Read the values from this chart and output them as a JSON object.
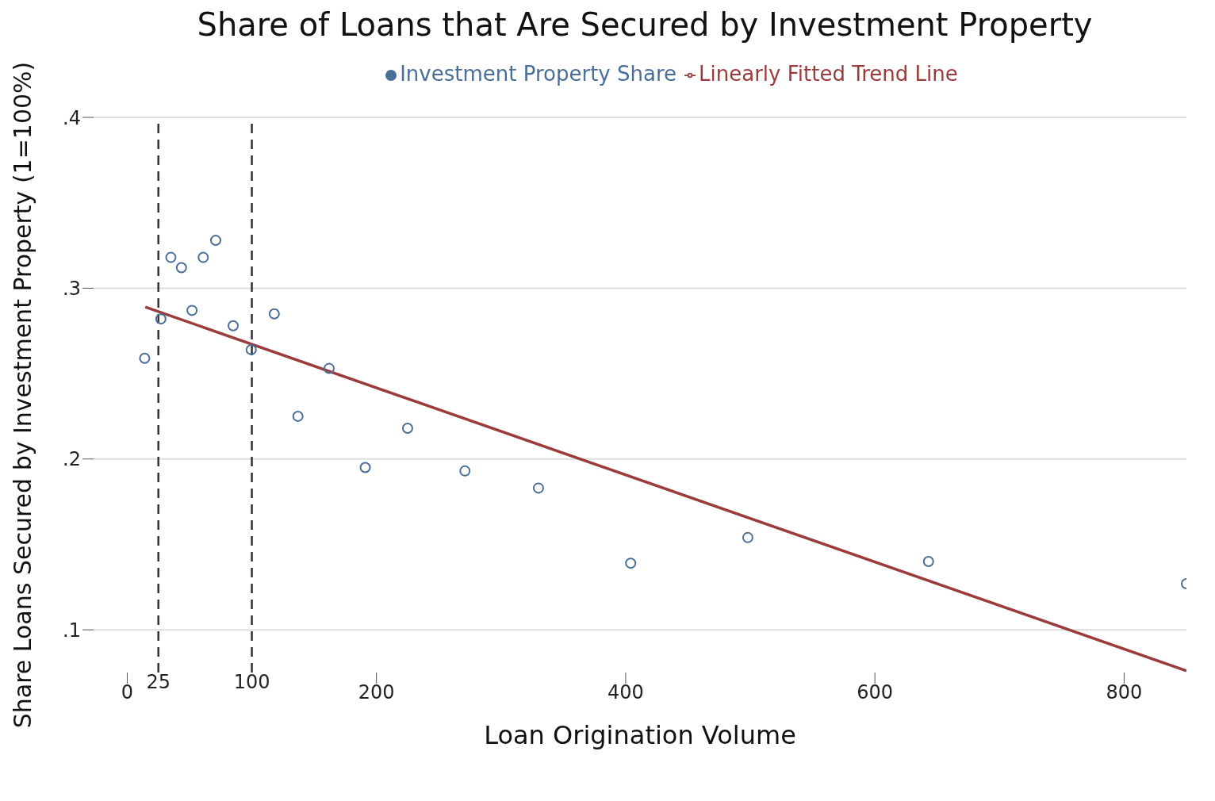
{
  "chart_data": {
    "type": "scatter",
    "title": "Share of Loans that Are Secured by Investment Property",
    "xlabel": "Loan Origination Volume",
    "ylabel": "Share Loans Secured by Investment Property (1=100%)",
    "series": [
      {
        "name": "Investment Property Share",
        "color": "#4a6e9a",
        "marker": "circle",
        "x": [
          14,
          27,
          35,
          43.5,
          52,
          61,
          71,
          85,
          99.5,
          118,
          137,
          162,
          191,
          225,
          271,
          330,
          404,
          498,
          643,
          850
        ],
        "values": [
          0.259,
          0.282,
          0.318,
          0.312,
          0.287,
          0.318,
          0.328,
          0.278,
          0.264,
          0.285,
          0.225,
          0.253,
          0.195,
          0.218,
          0.193,
          0.183,
          0.139,
          0.154,
          0.14,
          0.127
        ]
      },
      {
        "name": "Linearly Fitted Trend Line",
        "type": "line",
        "color": "#9b3b3b",
        "line_style": "solid",
        "marker": "none",
        "x": [
          14.5,
          850
        ],
        "values": [
          0.289,
          0.076
        ]
      }
    ],
    "xlim": [
      -27,
      850
    ],
    "ylim": [
      0.075,
      0.4
    ],
    "xticks": [
      0,
      200,
      400,
      600,
      800
    ],
    "yticks": [
      {
        "value": 0.1,
        "label": ".1"
      },
      {
        "value": 0.2,
        "label": ".2"
      },
      {
        "value": 0.3,
        "label": ".3"
      },
      {
        "value": 0.4,
        "label": ".4"
      }
    ],
    "ref_lines": [
      {
        "axis": "x",
        "value": 25,
        "label": "25",
        "color": "#333333",
        "line_style": "dashed"
      },
      {
        "axis": "x",
        "value": 100,
        "label": "100",
        "color": "#333333",
        "line_style": "dashed"
      }
    ],
    "grid": "y",
    "legend": "top"
  }
}
